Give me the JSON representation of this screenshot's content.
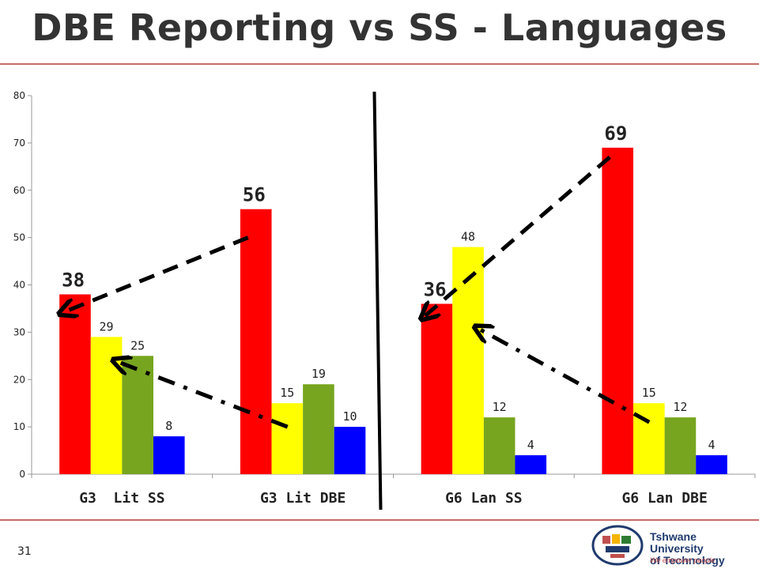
{
  "slide": {
    "title": "DBE Reporting vs SS - Languages",
    "slide_number": "31",
    "logo": {
      "name": "Tshwane University\nof Technology",
      "tagline": "We empower people"
    }
  },
  "colors": {
    "red": "#ff0000",
    "yellow": "#ffff00",
    "green": "#77a51f",
    "blue": "#0000ff",
    "accent_rule": "#c0504d"
  },
  "chart_data": {
    "type": "bar",
    "categories": [
      "G3  Lit SS",
      "G3 Lit DBE",
      "G6 Lan SS",
      "G6 Lan DBE"
    ],
    "series": [
      {
        "color": "#ff0000",
        "values": [
          38,
          56,
          36,
          69
        ]
      },
      {
        "color": "#ffff00",
        "values": [
          29,
          15,
          48,
          15
        ]
      },
      {
        "color": "#77a51f",
        "values": [
          25,
          19,
          12,
          12
        ]
      },
      {
        "color": "#0000ff",
        "values": [
          8,
          10,
          4,
          4
        ]
      }
    ],
    "ylim": [
      0,
      80
    ],
    "yticks": [
      0,
      10,
      20,
      30,
      40,
      50,
      60,
      70,
      80
    ],
    "grid": false,
    "legend": "none",
    "emphasized_labels": "first series (larger, bold)",
    "annotations": [
      {
        "style": "dashed arrow",
        "from": {
          "category": "G3 Lit DBE",
          "value": 50
        },
        "to": {
          "category": "G3  Lit SS",
          "value": 34
        }
      },
      {
        "style": "dash-dot arrow",
        "from": {
          "category": "G3 Lit DBE",
          "value": 10
        },
        "to": {
          "category": "G3  Lit SS",
          "value": 24
        }
      },
      {
        "style": "dashed arrow",
        "from": {
          "category": "G6 Lan DBE",
          "value": 67
        },
        "to": {
          "category": "G6 Lan SS",
          "value": 33
        }
      },
      {
        "style": "dash-dot arrow",
        "from": {
          "category": "G6 Lan DBE",
          "value": 11
        },
        "to": {
          "category": "G6 Lan SS",
          "value": 31
        }
      }
    ],
    "divider": "vertical line between G3 Lit DBE and G6 Lan SS"
  }
}
